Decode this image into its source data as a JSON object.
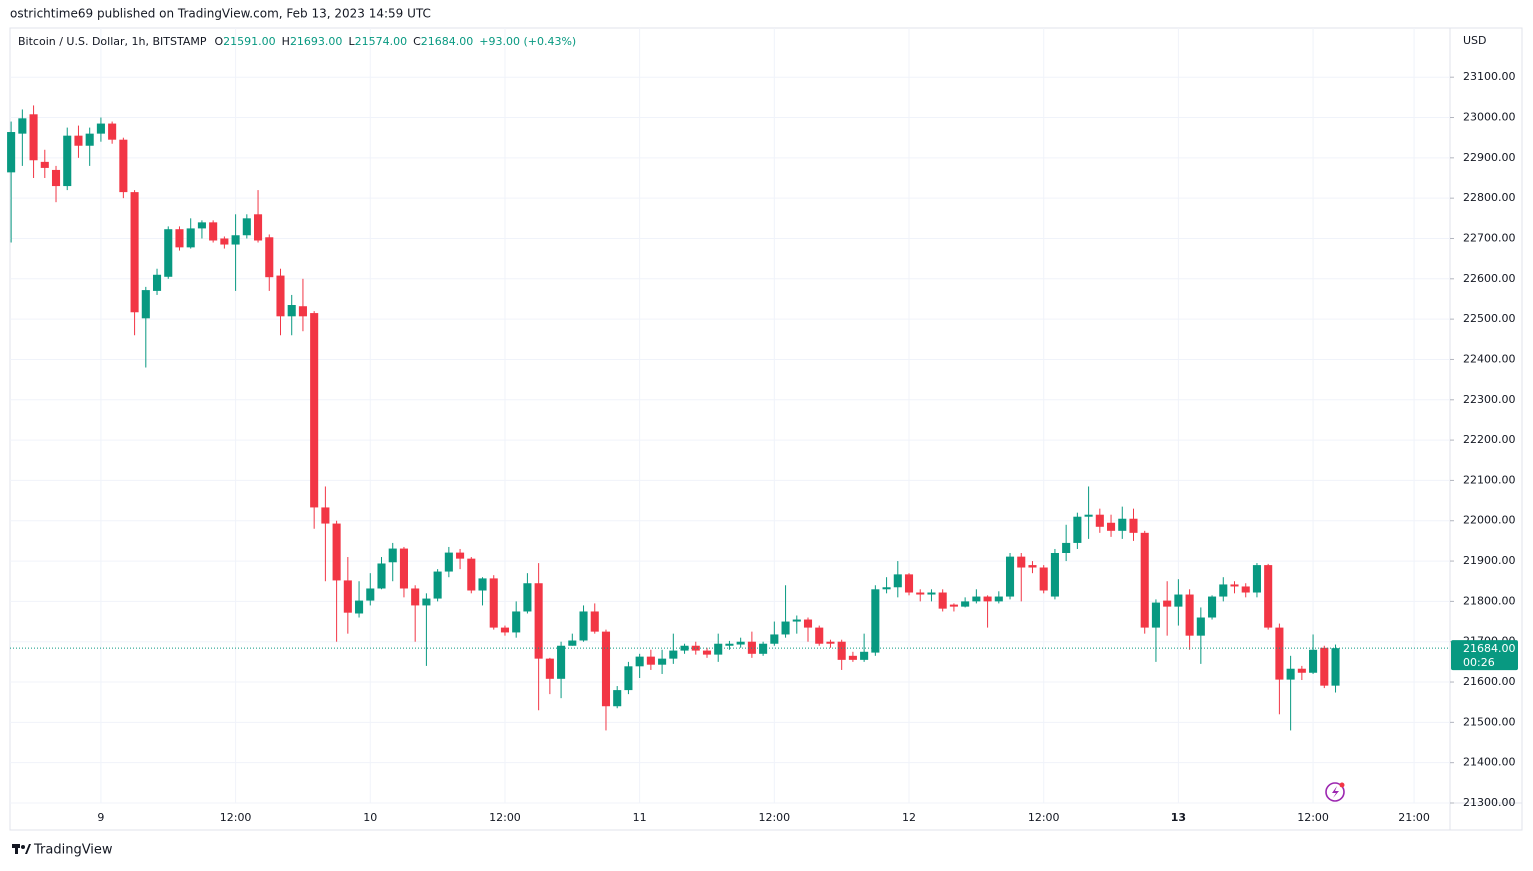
{
  "header": {
    "publisher": "ostrichtime69 published on TradingView.com, Feb 13, 2023 14:59 UTC"
  },
  "footer": {
    "brand": "TradingView"
  },
  "chart_data": {
    "type": "candlestick",
    "title": "Bitcoin / U.S. Dollar, 1h, BITSTAMP",
    "ohlc_legend": [
      {
        "key": "O",
        "value": "21591.00"
      },
      {
        "key": "H",
        "value": "21693.00"
      },
      {
        "key": "L",
        "value": "21574.00"
      },
      {
        "key": "C",
        "value": "21684.00"
      }
    ],
    "change": "+93.00 (+0.43%)",
    "y_axis_label": "USD",
    "up_color": "#089981",
    "down_color": "#f23645",
    "grid": true,
    "open": [
      22864,
      22960,
      23008,
      22890,
      22870,
      22830,
      22955,
      22930,
      22960,
      22985,
      22945,
      22815,
      22502,
      22570,
      22605,
      22723,
      22678,
      22725,
      22740,
      22700,
      22685,
      22708,
      22760,
      22703,
      22608,
      22507,
      22532,
      22515,
      22033,
      21993,
      21852,
      21770,
      21802,
      21832,
      21897,
      21931,
      21832,
      21790,
      21807,
      21874,
      21921,
      21906,
      21827,
      21857,
      21735,
      21723,
      21775,
      21845,
      21658,
      21608,
      21690,
      21703,
      21775,
      21725,
      21540,
      21580,
      21639,
      21663,
      21643,
      21658,
      21678,
      21690,
      21678,
      21668,
      21690,
      21693,
      21700,
      21670,
      21695,
      21718,
      21750,
      21755,
      21735,
      21700,
      21700,
      21665,
      21655,
      21673,
      21830,
      21835,
      21867,
      21822,
      21817,
      21822,
      21792,
      21787,
      21800,
      21812,
      21800,
      21812,
      21911,
      21890,
      21884,
      21812,
      21920,
      21945,
      22010,
      22015,
      21995,
      21975,
      22005,
      21970,
      21735,
      21802,
      21787,
      21817,
      21715,
      21760,
      21812,
      21842,
      21837,
      21822,
      21890,
      21735,
      21606,
      21633,
      21623,
      21685,
      21591
    ],
    "high": [
      22990,
      23020,
      23030,
      22920,
      22880,
      22975,
      22980,
      22975,
      23000,
      22990,
      22950,
      22820,
      22580,
      22625,
      22730,
      22730,
      22750,
      22745,
      22745,
      22705,
      22760,
      22760,
      22820,
      22710,
      22625,
      22560,
      22600,
      22520,
      22085,
      22000,
      21910,
      21850,
      21870,
      21910,
      21945,
      21935,
      21840,
      21820,
      21880,
      21935,
      21930,
      21910,
      21860,
      21865,
      21740,
      21800,
      21870,
      21895,
      21660,
      21700,
      21720,
      21790,
      21795,
      21730,
      21590,
      21650,
      21670,
      21680,
      21680,
      21720,
      21695,
      21700,
      21685,
      21720,
      21702,
      21710,
      21725,
      21700,
      21750,
      21840,
      21765,
      21760,
      21740,
      21705,
      21705,
      21675,
      21720,
      21840,
      21860,
      21900,
      21870,
      21830,
      21830,
      21830,
      21795,
      21810,
      21830,
      21815,
      21825,
      21920,
      21920,
      21900,
      21890,
      21930,
      21990,
      22020,
      22085,
      22030,
      22015,
      22035,
      22030,
      21975,
      21805,
      21850,
      21855,
      21830,
      21785,
      21815,
      21860,
      21850,
      21845,
      21895,
      21893,
      21745,
      21665,
      21640,
      21718,
      21690,
      21693
    ],
    "low": [
      22690,
      22880,
      22850,
      22850,
      22790,
      22820,
      22900,
      22880,
      22940,
      22935,
      22800,
      22460,
      22380,
      22560,
      22600,
      22670,
      22675,
      22700,
      22690,
      22675,
      22570,
      22700,
      22690,
      22570,
      22460,
      22460,
      22470,
      21980,
      21850,
      21700,
      21720,
      21760,
      21790,
      21830,
      21850,
      21810,
      21700,
      21640,
      21800,
      21860,
      21880,
      21820,
      21790,
      21730,
      21715,
      21710,
      21770,
      21530,
      21570,
      21560,
      21690,
      21700,
      21720,
      21480,
      21535,
      21570,
      21610,
      21630,
      21620,
      21645,
      21670,
      21668,
      21660,
      21650,
      21680,
      21685,
      21660,
      21665,
      21690,
      21710,
      21720,
      21700,
      21690,
      21685,
      21630,
      21650,
      21650,
      21665,
      21820,
      21810,
      21815,
      21800,
      21800,
      21775,
      21775,
      21785,
      21795,
      21735,
      21795,
      21805,
      21800,
      21870,
      21820,
      21805,
      21900,
      21930,
      21955,
      21970,
      21960,
      21955,
      21950,
      21720,
      21650,
      21715,
      21740,
      21680,
      21645,
      21755,
      21800,
      21820,
      21810,
      21810,
      21730,
      21520,
      21480,
      21605,
      21620,
      21585,
      21574
    ],
    "close": [
      22964,
      22998,
      22894,
      22875,
      22830,
      22955,
      22930,
      22960,
      22985,
      22945,
      22815,
      22517,
      22572,
      22610,
      22723,
      22678,
      22725,
      22740,
      22695,
      22685,
      22708,
      22750,
      22695,
      22604,
      22507,
      22535,
      22507,
      22033,
      21993,
      21852,
      21772,
      21802,
      21832,
      21894,
      21931,
      21832,
      21790,
      21807,
      21874,
      21921,
      21906,
      21827,
      21857,
      21735,
      21723,
      21775,
      21845,
      21658,
      21608,
      21690,
      21703,
      21775,
      21725,
      21540,
      21580,
      21639,
      21663,
      21643,
      21658,
      21678,
      21690,
      21678,
      21668,
      21695,
      21695,
      21700,
      21670,
      21695,
      21718,
      21750,
      21755,
      21735,
      21695,
      21695,
      21655,
      21655,
      21675,
      21830,
      21835,
      21867,
      21822,
      21817,
      21822,
      21782,
      21787,
      21800,
      21812,
      21800,
      21812,
      21911,
      21884,
      21884,
      21827,
      21920,
      21945,
      22010,
      22015,
      21985,
      21975,
      22005,
      21970,
      21735,
      21797,
      21787,
      21817,
      21715,
      21760,
      21812,
      21842,
      21837,
      21822,
      21890,
      21735,
      21606,
      21633,
      21623,
      21680,
      21591,
      21684
    ],
    "xlim": [
      -0.1,
      128.2
    ],
    "xticks": [
      {
        "value": 8,
        "label": "9"
      },
      {
        "value": 20,
        "label": "12:00"
      },
      {
        "value": 32,
        "label": "10"
      },
      {
        "value": 44,
        "label": "12:00"
      },
      {
        "value": 56,
        "label": "11"
      },
      {
        "value": 68,
        "label": "12:00"
      },
      {
        "value": 80,
        "label": "12"
      },
      {
        "value": 92,
        "label": "12:00"
      },
      {
        "value": 104,
        "label": "13"
      },
      {
        "value": 116,
        "label": "12:00"
      },
      {
        "value": 125,
        "label": "21:00"
      }
    ],
    "ylim": [
      21300,
      23222
    ],
    "yticks": [
      {
        "value": 21300,
        "label": "21300.00"
      },
      {
        "value": 21400,
        "label": "21400.00"
      },
      {
        "value": 21500,
        "label": "21500.00"
      },
      {
        "value": 21600,
        "label": "21600.00"
      },
      {
        "value": 21700,
        "label": "21700.00"
      },
      {
        "value": 21800,
        "label": "21800.00"
      },
      {
        "value": 21900,
        "label": "21900.00"
      },
      {
        "value": 22000,
        "label": "22000.00"
      },
      {
        "value": 22100,
        "label": "22100.00"
      },
      {
        "value": 22200,
        "label": "22200.00"
      },
      {
        "value": 22300,
        "label": "22300.00"
      },
      {
        "value": 22400,
        "label": "22400.00"
      },
      {
        "value": 22500,
        "label": "22500.00"
      },
      {
        "value": 22600,
        "label": "22600.00"
      },
      {
        "value": 22700,
        "label": "22700.00"
      },
      {
        "value": 22800,
        "label": "22800.00"
      },
      {
        "value": 22900,
        "label": "22900.00"
      },
      {
        "value": 23000,
        "label": "23000.00"
      },
      {
        "value": 23100,
        "label": "23100.00"
      }
    ],
    "last_price": {
      "value": 21684,
      "label": "21684.00",
      "countdown": "00:26"
    }
  }
}
